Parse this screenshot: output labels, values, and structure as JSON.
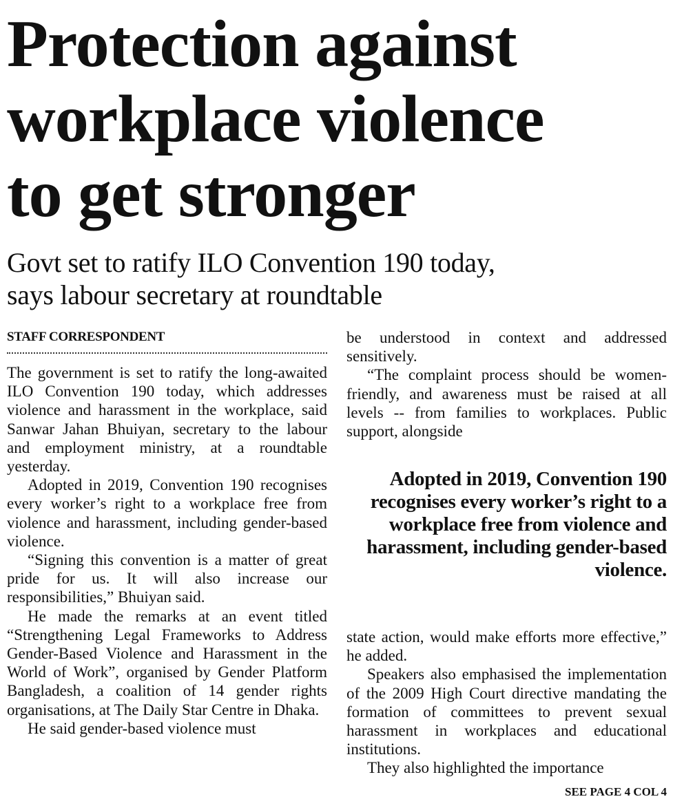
{
  "headline": {
    "lines": [
      "Protection against",
      "workplace violence",
      "to get stronger"
    ]
  },
  "subhead": {
    "lines": [
      "Govt set to ratify ILO Convention 190 today,",
      "says labour secretary at roundtable"
    ]
  },
  "byline": "STAFF CORRESPONDENT",
  "left_column": [
    "The government is set to ratify the long-awaited ILO Convention 190 today, which addresses violence and harassment in the workplace, said Sanwar Jahan Bhuiyan, secretary to the labour and employment ministry, at a roundtable yesterday.",
    "Adopted in 2019, Convention 190 recognises every worker’s right to a workplace free from violence and harassment, including gender-based violence.",
    "“Signing this convention is a matter of great pride for us. It will also increase our responsibilities,” Bhuiyan said.",
    "He made the remarks at an event titled “Strengthening Legal Frameworks to Address Gender-Based Violence and Harassment in the World of Work”, organised by Gender Platform Bangladesh, a coalition of 14 gender rights organisations, at The Daily Star Centre in Dhaka.",
    "He said gender-based violence must"
  ],
  "right_column_top": [
    "be understood in context and addressed sensitively.",
    "“The complaint process should be women-friendly, and awareness must be raised at all levels -- from families to workplaces. Public support, alongside"
  ],
  "pull_quote": "Adopted in 2019, Convention 190 recognises every worker’s right to a workplace free from violence and harassment, including gender-based violence.",
  "right_column_bottom": [
    "state action, would make efforts more effective,” he added.",
    "Speakers also emphasised the implementation of the 2009 High Court directive mandating the formation of committees to prevent sexual harassment in workplaces and educational institutions.",
    "They also highlighted the importance"
  ],
  "continuation": "SEE PAGE 4 COL 4"
}
